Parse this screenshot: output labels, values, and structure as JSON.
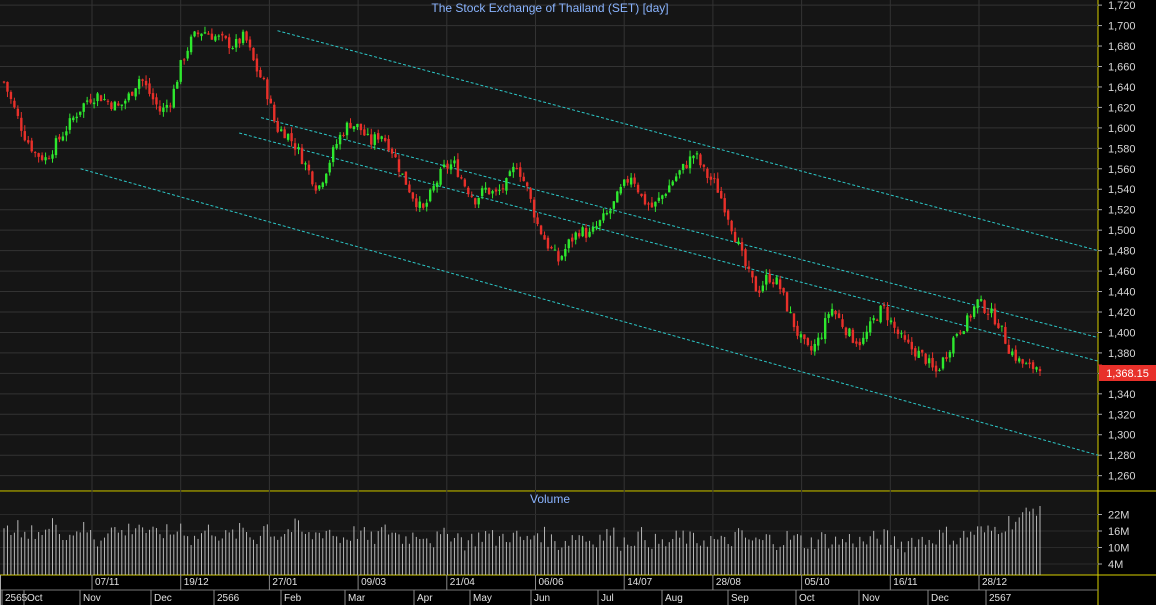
{
  "chart_data": {
    "type": "candlestick",
    "title": "The Stock Exchange of Thailand (SET) [day]",
    "volume_title": "Volume",
    "price_axis": {
      "ylim": [
        1245,
        1725
      ],
      "ticks": [
        "1,720",
        "1,700",
        "1,680",
        "1,660",
        "1,640",
        "1,620",
        "1,600",
        "1,580",
        "1,560",
        "1,540",
        "1,520",
        "1,500",
        "1,480",
        "1,460",
        "1,440",
        "1,420",
        "1,400",
        "1,380",
        "1,360",
        "1,340",
        "1,320",
        "1,300",
        "1,280",
        "1,260"
      ],
      "tick_values": [
        1720,
        1700,
        1680,
        1660,
        1640,
        1620,
        1600,
        1580,
        1560,
        1540,
        1520,
        1500,
        1480,
        1460,
        1440,
        1420,
        1400,
        1380,
        1360,
        1340,
        1320,
        1300,
        1280,
        1260
      ]
    },
    "volume_axis": {
      "ylim": [
        0,
        28
      ],
      "ticks": [
        "22M",
        "16M",
        "10M",
        "4M"
      ],
      "tick_values": [
        22,
        16,
        10,
        4
      ]
    },
    "last_price": {
      "label": "1,368.15",
      "value": 1368.15,
      "color": "#e8302a"
    },
    "date_labels": [
      "07/11",
      "19/12",
      "27/01",
      "09/03",
      "21/04",
      "06/06",
      "14/07",
      "28/08",
      "05/10",
      "16/11",
      "28/12"
    ],
    "month_labels": [
      "2565",
      "Oct",
      "Nov",
      "Dec",
      "2566",
      "Feb",
      "Mar",
      "Apr",
      "May",
      "Jun",
      "Jul",
      "Aug",
      "Sep",
      "Oct",
      "Nov",
      "Dec",
      "2567"
    ],
    "price_path": [
      1645,
      1618,
      1592,
      1575,
      1570,
      1585,
      1600,
      1615,
      1628,
      1632,
      1625,
      1620,
      1632,
      1650,
      1632,
      1615,
      1628,
      1665,
      1688,
      1695,
      1690,
      1685,
      1680,
      1690,
      1660,
      1640,
      1600,
      1595,
      1580,
      1560,
      1540,
      1565,
      1590,
      1605,
      1600,
      1585,
      1595,
      1580,
      1555,
      1535,
      1518,
      1540,
      1560,
      1565,
      1545,
      1530,
      1540,
      1535,
      1545,
      1565,
      1540,
      1505,
      1485,
      1470,
      1488,
      1500,
      1495,
      1508,
      1520,
      1540,
      1555,
      1530,
      1522,
      1535,
      1550,
      1562,
      1575,
      1555,
      1545,
      1520,
      1490,
      1460,
      1440,
      1455,
      1448,
      1420,
      1395,
      1380,
      1395,
      1425,
      1410,
      1395,
      1390,
      1410,
      1425,
      1405,
      1390,
      1382,
      1375,
      1360,
      1378,
      1400,
      1410,
      1430,
      1422,
      1410,
      1385,
      1372,
      1365,
      1368
    ],
    "volume_levels": [
      0.55,
      0.7,
      0.48,
      0.62,
      0.58,
      0.74,
      0.5,
      0.66,
      0.6,
      0.45,
      0.68,
      0.57,
      0.63,
      0.71,
      0.52,
      0.6,
      0.55,
      0.69,
      0.47,
      0.58,
      0.64,
      0.5,
      0.56,
      0.62,
      0.48,
      0.7,
      0.53,
      0.6,
      0.66,
      0.51,
      0.57,
      0.63,
      0.49,
      0.55,
      0.6,
      0.46,
      0.58,
      0.62,
      0.5,
      0.54,
      0.59,
      0.47,
      0.52,
      0.6,
      0.45,
      0.5,
      0.57,
      0.48,
      0.55,
      0.52,
      0.46,
      0.6,
      0.5,
      0.43,
      0.49,
      0.56,
      0.47,
      0.52,
      0.58,
      0.44,
      0.5,
      0.54,
      0.46,
      0.41,
      0.48,
      0.53,
      0.45,
      0.5,
      0.47,
      0.42,
      0.55,
      0.49,
      0.44,
      0.5,
      0.46,
      0.52,
      0.48,
      0.43,
      0.51,
      0.47,
      0.45,
      0.5,
      0.44,
      0.48,
      0.53,
      0.46,
      0.42,
      0.5,
      0.47,
      0.52,
      0.56,
      0.49,
      0.55,
      0.6,
      0.58,
      0.66,
      0.72,
      0.78,
      0.85,
      0.97
    ],
    "channel_lines": [
      {
        "from_index": 0.07,
        "from_price": 1560,
        "to_index": 1.0,
        "to_price": 1280
      },
      {
        "from_index": 0.25,
        "from_price": 1695,
        "to_index": 1.0,
        "to_price": 1480
      },
      {
        "from_index": 0.235,
        "from_price": 1610,
        "to_index": 1.0,
        "to_price": 1395
      },
      {
        "from_index": 0.215,
        "from_price": 1595,
        "to_index": 1.0,
        "to_price": 1372
      }
    ],
    "colors": {
      "background": "#000000",
      "plot_background": "#151515",
      "grid": "#333333",
      "frame": "#d8d000",
      "up": "#2ee82e",
      "down": "#e8302a",
      "volume": "#b8b8b8",
      "channel": "#2cc6c6",
      "title": "#8ab4ff"
    },
    "grid": true
  }
}
